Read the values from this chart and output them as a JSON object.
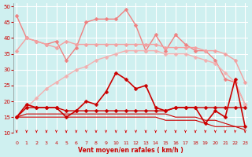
{
  "x": [
    0,
    1,
    2,
    3,
    4,
    5,
    6,
    7,
    8,
    9,
    10,
    11,
    12,
    13,
    14,
    15,
    16,
    17,
    18,
    19,
    20,
    21,
    22,
    23
  ],
  "series": [
    {
      "name": "rafales_top",
      "color": "#f08080",
      "lw": 1.0,
      "marker": "D",
      "markersize": 2.5,
      "y": [
        47,
        40,
        39,
        38,
        39,
        33,
        37,
        45,
        46,
        46,
        46,
        49,
        44,
        36,
        41,
        36,
        41,
        38,
        36,
        36,
        33,
        27,
        26,
        19
      ]
    },
    {
      "name": "rafales_upper_band",
      "color": "#f4a0a0",
      "lw": 1.0,
      "marker": "D",
      "markersize": 2.5,
      "y": [
        36,
        40,
        39,
        38,
        37,
        39,
        38,
        38,
        38,
        38,
        38,
        38,
        38,
        38,
        38,
        37,
        37,
        37,
        37,
        36,
        36,
        35,
        33,
        26
      ]
    },
    {
      "name": "rafales_lower_band",
      "color": "#f4b0b0",
      "lw": 1.0,
      "marker": "D",
      "markersize": 2.5,
      "y": [
        15,
        18,
        21,
        24,
        26,
        28,
        30,
        31,
        33,
        34,
        35,
        36,
        36,
        36,
        36,
        35,
        35,
        35,
        34,
        33,
        32,
        29,
        26,
        19
      ]
    },
    {
      "name": "vent_top",
      "color": "#cc0000",
      "lw": 1.2,
      "marker": "D",
      "markersize": 2.5,
      "y": [
        15,
        19,
        18,
        18,
        18,
        15,
        17,
        20,
        19,
        23,
        29,
        27,
        24,
        25,
        18,
        17,
        18,
        18,
        18,
        13,
        17,
        15,
        27,
        12
      ]
    },
    {
      "name": "vent_upper",
      "color": "#cc0000",
      "lw": 1.0,
      "marker": "D",
      "markersize": 2.5,
      "y": [
        15,
        18,
        18,
        18,
        18,
        17,
        17,
        17,
        17,
        17,
        17,
        17,
        17,
        17,
        17,
        17,
        18,
        18,
        18,
        18,
        18,
        18,
        18,
        18
      ]
    },
    {
      "name": "vent_mid",
      "color": "#cc0000",
      "lw": 0.8,
      "marker": null,
      "markersize": 0,
      "y": [
        15,
        16,
        16,
        16,
        16,
        16,
        16,
        16,
        16,
        16,
        16,
        16,
        16,
        16,
        16,
        16,
        15,
        15,
        15,
        14,
        14,
        13,
        12,
        12
      ]
    },
    {
      "name": "vent_low",
      "color": "#cc0000",
      "lw": 0.8,
      "marker": null,
      "markersize": 0,
      "y": [
        15,
        15,
        15,
        15,
        15,
        15,
        15,
        15,
        15,
        15,
        15,
        15,
        15,
        15,
        15,
        14,
        14,
        14,
        14,
        13,
        12,
        12,
        12,
        11
      ]
    }
  ],
  "xlabel": "Vent moyen/en rafales ( km/h )",
  "xlim": [
    -0.3,
    23.3
  ],
  "ylim": [
    10,
    51
  ],
  "yticks": [
    10,
    15,
    20,
    25,
    30,
    35,
    40,
    45,
    50
  ],
  "xticks": [
    0,
    1,
    2,
    3,
    4,
    5,
    6,
    7,
    8,
    9,
    10,
    11,
    12,
    13,
    14,
    15,
    16,
    17,
    18,
    19,
    20,
    21,
    22,
    23
  ],
  "bg_color": "#cff0f0",
  "grid_color": "#b0dede",
  "xlabel_color": "#cc0000",
  "tick_color": "#cc0000",
  "arrow_color": "#cc0000",
  "spine_color": "#888888"
}
